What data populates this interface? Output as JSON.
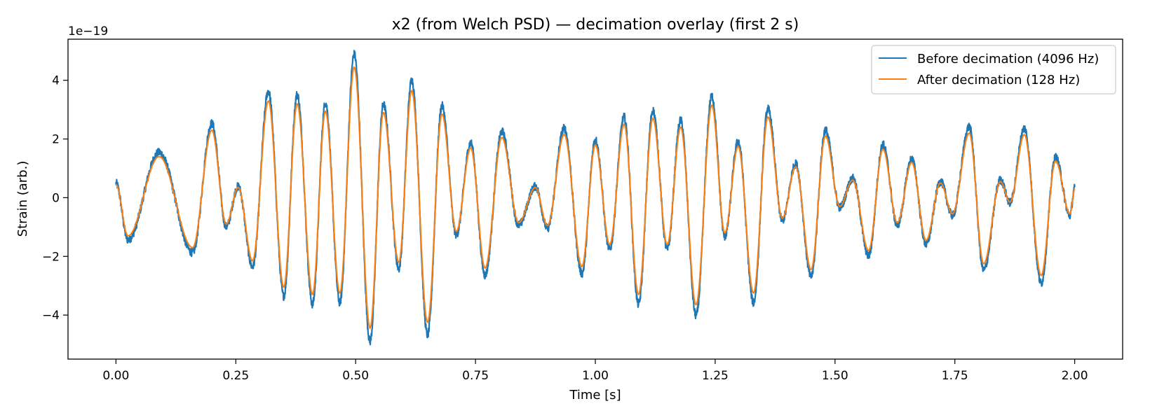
{
  "chart_data": {
    "type": "line",
    "title": "x2 (from Welch PSD) — decimation overlay (first 2 s)",
    "xlabel": "Time [s]",
    "ylabel": "Strain (arb.)",
    "offset_text": "1e−19",
    "xlim": [
      -0.1,
      2.1
    ],
    "ylim": [
      -5.5,
      5.4
    ],
    "xticks": [
      0.0,
      0.25,
      0.5,
      0.75,
      1.0,
      1.25,
      1.5,
      1.75,
      2.0
    ],
    "xtick_labels": [
      "0.00",
      "0.25",
      "0.50",
      "0.75",
      "1.00",
      "1.25",
      "1.50",
      "1.75",
      "2.00"
    ],
    "yticks": [
      -4,
      -2,
      0,
      2,
      4
    ],
    "ytick_labels": [
      "−4",
      "−2",
      "0",
      "2",
      "4"
    ],
    "legend_position": "top-right",
    "series": [
      {
        "name": "Before decimation (4096 Hz)",
        "color": "#1f77b4",
        "noise_amplitude": 0.14,
        "extrema_scale": 1.1
      },
      {
        "name": "After decimation (128 Hz)",
        "color": "#ff7f0e",
        "noise_amplitude": 0,
        "extrema_scale": 1.0
      }
    ],
    "extrema": [
      [
        0.0,
        0.45
      ],
      [
        0.025,
        -1.3
      ],
      [
        0.09,
        1.4
      ],
      [
        0.16,
        -1.7
      ],
      [
        0.2,
        2.3
      ],
      [
        0.23,
        -0.9
      ],
      [
        0.255,
        0.35
      ],
      [
        0.285,
        -2.15
      ],
      [
        0.318,
        3.3
      ],
      [
        0.35,
        -3.05
      ],
      [
        0.378,
        3.2
      ],
      [
        0.41,
        -3.3
      ],
      [
        0.437,
        2.95
      ],
      [
        0.467,
        -3.25
      ],
      [
        0.497,
        4.45
      ],
      [
        0.53,
        -4.45
      ],
      [
        0.558,
        2.9
      ],
      [
        0.59,
        -2.2
      ],
      [
        0.617,
        3.65
      ],
      [
        0.65,
        -4.25
      ],
      [
        0.68,
        2.85
      ],
      [
        0.71,
        -1.15
      ],
      [
        0.74,
        1.7
      ],
      [
        0.77,
        -2.4
      ],
      [
        0.805,
        2.05
      ],
      [
        0.84,
        -0.85
      ],
      [
        0.875,
        0.35
      ],
      [
        0.9,
        -0.95
      ],
      [
        0.935,
        2.15
      ],
      [
        0.972,
        -2.35
      ],
      [
        1.0,
        1.8
      ],
      [
        1.03,
        -1.6
      ],
      [
        1.06,
        2.5
      ],
      [
        1.09,
        -3.3
      ],
      [
        1.12,
        2.7
      ],
      [
        1.15,
        -1.6
      ],
      [
        1.178,
        2.4
      ],
      [
        1.21,
        -3.65
      ],
      [
        1.243,
        3.15
      ],
      [
        1.27,
        -1.2
      ],
      [
        1.298,
        1.75
      ],
      [
        1.33,
        -3.25
      ],
      [
        1.36,
        2.75
      ],
      [
        1.39,
        -0.7
      ],
      [
        1.418,
        1.05
      ],
      [
        1.45,
        -2.45
      ],
      [
        1.48,
        2.1
      ],
      [
        1.51,
        -0.3
      ],
      [
        1.537,
        0.6
      ],
      [
        1.57,
        -1.8
      ],
      [
        1.6,
        1.65
      ],
      [
        1.63,
        -0.85
      ],
      [
        1.66,
        1.2
      ],
      [
        1.69,
        -1.45
      ],
      [
        1.72,
        0.5
      ],
      [
        1.745,
        -0.55
      ],
      [
        1.78,
        2.2
      ],
      [
        1.81,
        -2.25
      ],
      [
        1.845,
        0.55
      ],
      [
        1.865,
        -0.15
      ],
      [
        1.895,
        2.15
      ],
      [
        1.93,
        -2.65
      ],
      [
        1.96,
        1.25
      ],
      [
        1.99,
        -0.55
      ],
      [
        2.0,
        0.3
      ]
    ]
  }
}
